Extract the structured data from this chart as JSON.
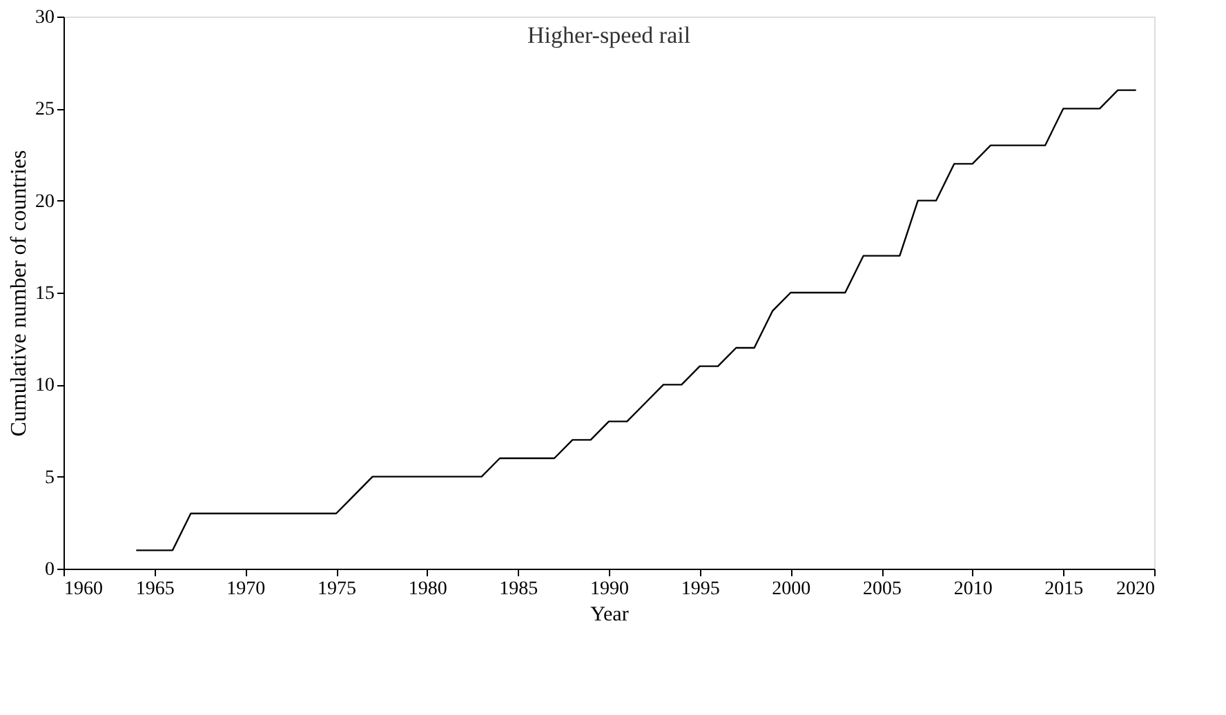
{
  "chart_data": {
    "type": "line",
    "title": "Higher-speed rail",
    "xlabel": "Year",
    "ylabel": "Cumulative number of countries",
    "x": [
      1964,
      1965,
      1966,
      1967,
      1968,
      1969,
      1970,
      1971,
      1972,
      1973,
      1974,
      1975,
      1976,
      1977,
      1978,
      1979,
      1980,
      1981,
      1982,
      1983,
      1984,
      1985,
      1986,
      1987,
      1988,
      1989,
      1990,
      1991,
      1992,
      1993,
      1994,
      1995,
      1996,
      1997,
      1998,
      1999,
      2000,
      2001,
      2002,
      2003,
      2004,
      2005,
      2006,
      2007,
      2008,
      2009,
      2010,
      2011,
      2012,
      2013,
      2014,
      2015,
      2016,
      2017,
      2018,
      2019
    ],
    "series": [
      {
        "color": "#000000",
        "values": [
          1,
          1,
          1,
          3,
          3,
          3,
          3,
          3,
          3,
          3,
          3,
          3,
          4,
          5,
          5,
          5,
          5,
          5,
          5,
          5,
          6,
          6,
          6,
          6,
          7,
          7,
          8,
          8,
          9,
          10,
          10,
          11,
          11,
          12,
          12,
          14,
          15,
          15,
          15,
          15,
          17,
          17,
          17,
          20,
          20,
          22,
          22,
          23,
          23,
          23,
          23,
          25,
          25,
          25,
          26,
          26
        ]
      }
    ],
    "xlim": [
      1960,
      2020
    ],
    "xticks": [
      1960,
      1965,
      1970,
      1975,
      1980,
      1985,
      1990,
      1995,
      2000,
      2005,
      2010,
      2015,
      2020
    ],
    "ylim": [
      0,
      30
    ],
    "yticks": [
      0,
      5,
      10,
      15,
      20,
      25,
      30
    ],
    "grid": false,
    "legend": false,
    "marker": "none",
    "line_style": "solid"
  }
}
